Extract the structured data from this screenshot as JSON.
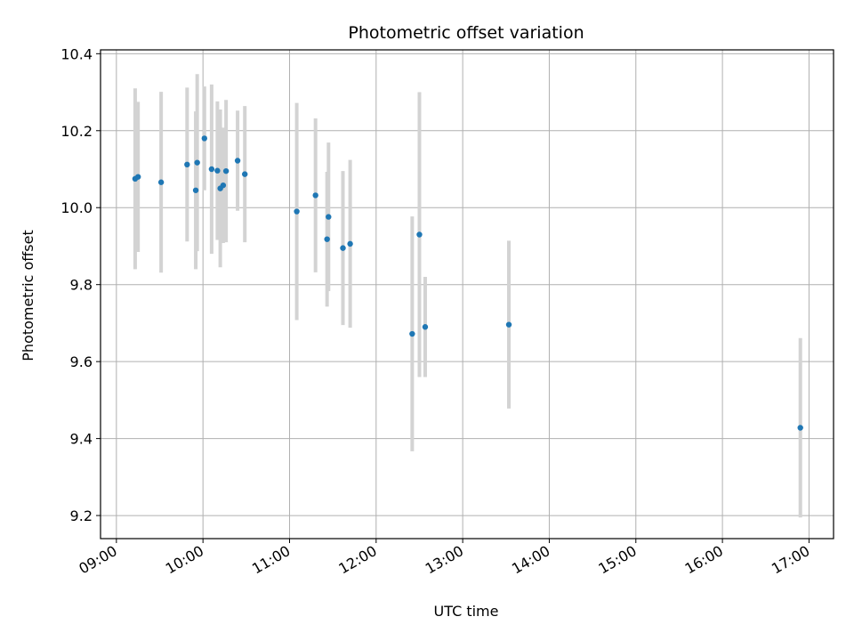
{
  "chart_data": {
    "type": "scatter",
    "title": "Photometric offset variation",
    "xlabel": "UTC time",
    "ylabel": "Photometric offset",
    "xlim": [
      "08:49",
      "17:17"
    ],
    "ylim": [
      9.14,
      10.41
    ],
    "grid": true,
    "x_ticks": [
      "09:00",
      "10:00",
      "11:00",
      "12:00",
      "13:00",
      "14:00",
      "15:00",
      "16:00",
      "17:00"
    ],
    "y_ticks": [
      "9.2",
      "9.4",
      "9.6",
      "9.8",
      "10.0",
      "10.2",
      "10.4"
    ],
    "colors": {
      "point": "#1f77b4",
      "errorbar": "#d3d3d3",
      "grid": "#b0b0b0"
    },
    "points": [
      {
        "x": "09:13",
        "y": 10.075,
        "err": 0.235
      },
      {
        "x": "09:15",
        "y": 10.08,
        "err": 0.195
      },
      {
        "x": "09:31",
        "y": 10.066,
        "err": 0.235
      },
      {
        "x": "09:49",
        "y": 10.112,
        "err": 0.2
      },
      {
        "x": "09:55",
        "y": 10.045,
        "err": 0.205
      },
      {
        "x": "09:56",
        "y": 10.117,
        "err": 0.23
      },
      {
        "x": "10:01",
        "y": 10.18,
        "err": 0.135
      },
      {
        "x": "10:06",
        "y": 10.1,
        "err": 0.22
      },
      {
        "x": "10:10",
        "y": 10.096,
        "err": 0.18
      },
      {
        "x": "10:12",
        "y": 10.05,
        "err": 0.205
      },
      {
        "x": "10:14",
        "y": 10.058,
        "err": 0.15
      },
      {
        "x": "10:16",
        "y": 10.095,
        "err": 0.185
      },
      {
        "x": "10:24",
        "y": 10.122,
        "err": 0.13
      },
      {
        "x": "10:29",
        "y": 10.087,
        "err": 0.177
      },
      {
        "x": "11:05",
        "y": 9.99,
        "err": 0.282
      },
      {
        "x": "11:18",
        "y": 10.032,
        "err": 0.2
      },
      {
        "x": "11:26",
        "y": 9.918,
        "err": 0.175
      },
      {
        "x": "11:27",
        "y": 9.976,
        "err": 0.193
      },
      {
        "x": "11:37",
        "y": 9.895,
        "err": 0.2
      },
      {
        "x": "11:42",
        "y": 9.906,
        "err": 0.218
      },
      {
        "x": "12:25",
        "y": 9.672,
        "err": 0.305
      },
      {
        "x": "12:30",
        "y": 9.93,
        "err": 0.37
      },
      {
        "x": "12:34",
        "y": 9.69,
        "err": 0.13
      },
      {
        "x": "13:32",
        "y": 9.696,
        "err": 0.218
      },
      {
        "x": "16:54",
        "y": 9.428,
        "err": 0.233
      }
    ]
  }
}
